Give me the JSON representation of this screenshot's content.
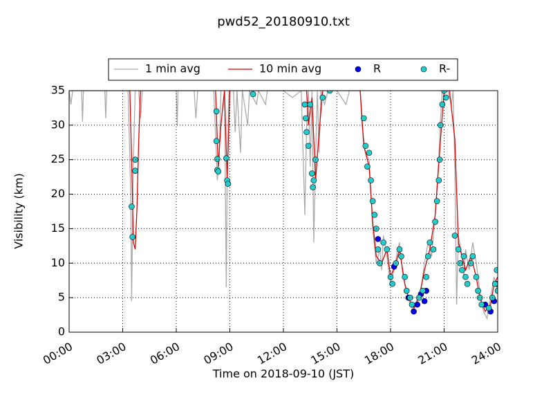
{
  "chart_data": {
    "type": "line",
    "title": "pwd52_20180910.txt",
    "x_label": "Time on 2018-09-10 (JST)",
    "y_label": "Visibility (km)",
    "xlim": [
      0,
      24
    ],
    "ylim": [
      0,
      35
    ],
    "xticks": [
      {
        "value": 0,
        "label": "00:00"
      },
      {
        "value": 3,
        "label": "03:00"
      },
      {
        "value": 6,
        "label": "06:00"
      },
      {
        "value": 9,
        "label": "09:00"
      },
      {
        "value": 12,
        "label": "12:00"
      },
      {
        "value": 15,
        "label": "15:00"
      },
      {
        "value": 18,
        "label": "18:00"
      },
      {
        "value": 21,
        "label": "21:00"
      },
      {
        "value": 24,
        "label": "24:00"
      }
    ],
    "yticks": [
      0,
      5,
      10,
      15,
      20,
      25,
      30,
      35
    ],
    "grid": true,
    "series": [
      {
        "name": "1 min avg",
        "type": "line",
        "color": "#aaaaaa",
        "x": [
          0.0,
          0.1,
          0.2,
          0.7,
          0.75,
          0.8,
          2.0,
          2.05,
          2.1,
          3.3,
          3.45,
          3.5,
          3.55,
          3.6,
          3.7,
          3.9,
          4.0,
          4.1,
          6.0,
          6.05,
          6.1,
          7.0,
          7.1,
          7.2,
          8.1,
          8.3,
          8.4,
          8.5,
          8.7,
          8.8,
          8.85,
          8.95,
          9.2,
          9.3,
          9.4,
          9.6,
          9.7,
          10.0,
          10.1,
          10.5,
          10.6,
          11.0,
          11.1,
          12.0,
          12.5,
          13.0,
          13.2,
          13.3,
          13.4,
          13.5,
          13.6,
          13.7,
          13.8,
          13.9,
          14.0,
          14.1,
          14.3,
          14.5,
          15.0,
          15.5,
          15.7,
          16.3,
          16.4,
          16.6,
          16.8,
          17.0,
          17.2,
          17.4,
          17.5,
          17.6,
          17.8,
          18.0,
          18.2,
          18.4,
          18.5,
          18.7,
          18.9,
          19.1,
          19.3,
          19.5,
          19.7,
          19.9,
          20.1,
          20.3,
          20.5,
          20.7,
          20.8,
          20.9,
          21.2,
          21.4,
          21.5,
          21.6,
          21.7,
          21.8,
          22.0,
          22.1,
          22.2,
          22.4,
          22.6,
          22.8,
          23.0,
          23.2,
          23.4,
          23.6,
          23.8,
          24.0
        ],
        "values": [
          35,
          33,
          35,
          35,
          30.5,
          35,
          35,
          31,
          35,
          35,
          20,
          4.5,
          15,
          25,
          35,
          35,
          31,
          35,
          35,
          30,
          35,
          35,
          31,
          35,
          35,
          22,
          25,
          35,
          35,
          6.5,
          22,
          35,
          35,
          29,
          35,
          26,
          35,
          30,
          35,
          33,
          35,
          33,
          35,
          35,
          34,
          35,
          17,
          30,
          35,
          24,
          35,
          13,
          25,
          35,
          26,
          35,
          33,
          35,
          35,
          33,
          35,
          35,
          30,
          26,
          25,
          15,
          10,
          12,
          9,
          14,
          11,
          7,
          9,
          12,
          13,
          8,
          6,
          4,
          3,
          5,
          6,
          10,
          13,
          11,
          17,
          25,
          31,
          35,
          35,
          33,
          35,
          24,
          4,
          14,
          11,
          8,
          12,
          9,
          13,
          10,
          6,
          3,
          2,
          5,
          8,
          6
        ]
      },
      {
        "name": "10 min avg",
        "type": "line",
        "color": "#dd0000",
        "x": [
          0,
          3.4,
          3.5,
          3.6,
          3.7,
          3.8,
          3.9,
          4.0,
          8.2,
          8.35,
          8.5,
          8.7,
          8.85,
          9.0,
          13.3,
          13.4,
          13.6,
          13.8,
          14.0,
          14.2,
          16.3,
          16.5,
          16.8,
          17.0,
          17.2,
          17.5,
          17.8,
          18.0,
          18.3,
          18.5,
          18.8,
          19.0,
          19.3,
          19.6,
          19.9,
          20.2,
          20.5,
          20.8,
          21.0,
          21.3,
          21.6,
          21.8,
          22.0,
          22.2,
          22.5,
          22.8,
          23.0,
          23.3,
          23.6,
          23.8,
          24.0
        ],
        "values": [
          35,
          35,
          25,
          13,
          12,
          18,
          28,
          35,
          35,
          24,
          30,
          35,
          22,
          35,
          35,
          30,
          34,
          22,
          29,
          35,
          35,
          27,
          24,
          16,
          11,
          10,
          12,
          8,
          10,
          12,
          7,
          5,
          3.5,
          5,
          9,
          12,
          17,
          28,
          35,
          35,
          28,
          13,
          11,
          9,
          11,
          8,
          5,
          3,
          4,
          7,
          8
        ]
      },
      {
        "name": "R",
        "type": "scatter",
        "color": "#0000ee",
        "x": [
          17.3,
          18.2,
          19.0,
          19.3,
          19.5,
          19.7,
          19.9,
          20.0,
          23.3,
          23.6,
          23.8,
          23.95
        ],
        "values": [
          13.5,
          9.5,
          5,
          3,
          4,
          5.5,
          4.5,
          6,
          4,
          3,
          4.5,
          7
        ]
      },
      {
        "name": "R-",
        "type": "scatter",
        "color": "#22cccc",
        "x": [
          3.5,
          3.55,
          3.7,
          3.7,
          8.25,
          8.3,
          8.3,
          8.35,
          8.25,
          8.8,
          8.85,
          8.9,
          10.3,
          13.2,
          13.25,
          13.3,
          13.4,
          13.5,
          13.6,
          13.65,
          13.7,
          13.8,
          14.2,
          14.6,
          16.5,
          16.6,
          16.7,
          16.8,
          16.9,
          17.0,
          17.1,
          17.2,
          17.3,
          17.4,
          17.6,
          17.8,
          18.0,
          18.1,
          18.3,
          18.5,
          18.6,
          18.8,
          18.9,
          19.1,
          19.2,
          19.6,
          19.8,
          20.0,
          20.1,
          20.2,
          20.4,
          20.5,
          20.6,
          20.7,
          20.75,
          20.8,
          20.9,
          21.0,
          21.1,
          21.6,
          21.8,
          21.9,
          22.0,
          22.1,
          22.2,
          22.3,
          22.5,
          22.6,
          22.8,
          22.9,
          23.0,
          23.1,
          23.5,
          23.7,
          23.85,
          23.95,
          24.0
        ],
        "values": [
          18.2,
          13.8,
          25,
          23.4,
          27.7,
          25.1,
          23.5,
          23.3,
          32,
          25.2,
          22,
          21.5,
          34.5,
          33,
          31,
          29,
          27,
          33,
          23,
          21,
          22,
          25,
          34,
          35,
          31,
          27,
          24,
          26,
          22,
          19,
          17,
          15,
          12,
          10,
          13,
          12,
          8,
          7,
          10,
          12,
          11,
          8,
          6,
          5,
          4,
          5,
          6,
          8,
          11,
          13,
          12,
          16,
          19,
          22,
          25,
          30,
          33,
          35,
          34,
          14,
          12,
          10,
          9,
          11,
          8,
          7,
          10,
          11,
          8,
          6,
          5,
          4,
          3.5,
          5,
          7,
          9,
          6
        ]
      }
    ]
  }
}
